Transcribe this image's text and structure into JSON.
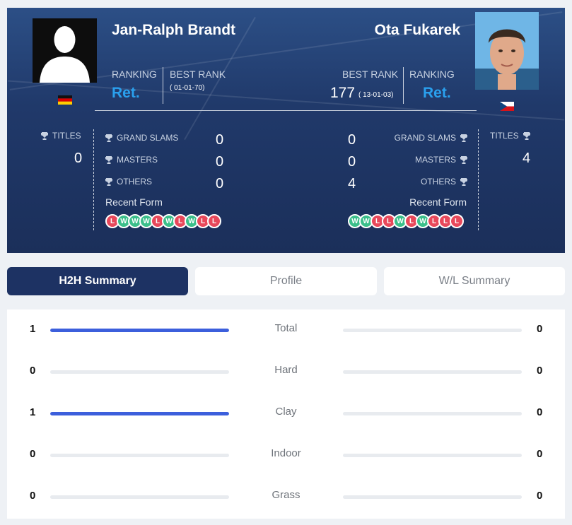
{
  "player_left": {
    "name": "Jan-Ralph Brandt",
    "ranking_label": "RANKING",
    "ranking_value": "Ret.",
    "best_rank_label": "BEST RANK",
    "best_rank_date": "( 01-01-70)",
    "flag": "germany-flag",
    "titles_label": "TITLES",
    "titles_value": "0",
    "grand_slams_label": "GRAND SLAMS",
    "grand_slams_value": "0",
    "masters_label": "MASTERS",
    "masters_value": "0",
    "others_label": "OTHERS",
    "others_value": "0",
    "recent_form_label": "Recent Form",
    "recent_form": [
      "L",
      "W",
      "W",
      "W",
      "L",
      "W",
      "L",
      "W",
      "L",
      "L"
    ]
  },
  "player_right": {
    "name": "Ota Fukarek",
    "ranking_label": "RANKING",
    "ranking_value": "Ret.",
    "best_rank_label": "BEST RANK",
    "best_rank_value": "177",
    "best_rank_date": "( 13-01-03)",
    "flag": "czech-flag",
    "titles_label": "TITLES",
    "titles_value": "4",
    "grand_slams_label": "GRAND SLAMS",
    "grand_slams_value": "0",
    "masters_label": "MASTERS",
    "masters_value": "0",
    "others_label": "OTHERS",
    "others_value": "4",
    "recent_form_label": "Recent Form",
    "recent_form": [
      "W",
      "W",
      "L",
      "L",
      "W",
      "L",
      "W",
      "L",
      "L",
      "L"
    ]
  },
  "tabs": [
    {
      "label": "H2H Summary",
      "active": true
    },
    {
      "label": "Profile",
      "active": false
    },
    {
      "label": "W/L Summary",
      "active": false
    }
  ],
  "h2h": [
    {
      "label": "Total",
      "left": "1",
      "right": "0",
      "left_fraction": 1,
      "right_fraction": 0
    },
    {
      "label": "Hard",
      "left": "0",
      "right": "0",
      "left_fraction": 0,
      "right_fraction": 0
    },
    {
      "label": "Clay",
      "left": "1",
      "right": "0",
      "left_fraction": 1,
      "right_fraction": 0
    },
    {
      "label": "Indoor",
      "left": "0",
      "right": "0",
      "left_fraction": 0,
      "right_fraction": 0
    },
    {
      "label": "Grass",
      "left": "0",
      "right": "0",
      "left_fraction": 0,
      "right_fraction": 0
    }
  ],
  "colors": {
    "header_bg": "#20396a",
    "ranking_accent": "#2aa0ee",
    "win": "#3bbf8a",
    "loss": "#e8485b",
    "bar_fill": "#3c5fdc",
    "tab_active": "#1d3263"
  }
}
